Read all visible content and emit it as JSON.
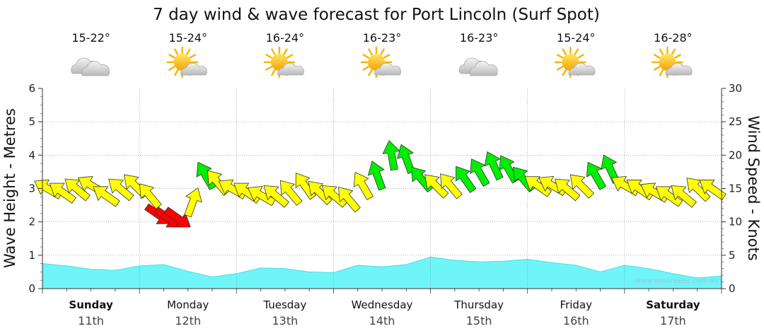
{
  "chart_data": {
    "type": "line",
    "title": "7 day wind & wave forecast for Port Lincoln (Surf Spot)",
    "ylabel": "Wave Height - Metres",
    "y2label": "Wind Speed - Knots",
    "ylim": [
      0,
      6
    ],
    "y2lim": [
      0,
      30
    ],
    "yticks": [
      "0",
      "1",
      "2",
      "3",
      "4",
      "5",
      "6"
    ],
    "y2ticks": [
      "0",
      "5",
      "10",
      "15",
      "20",
      "25",
      "30"
    ],
    "grid": true,
    "watermark": "www.seabreeze.com.au",
    "days": [
      {
        "name": "Sunday",
        "date": "11th",
        "temp": "15-22°",
        "icon": "cloud-icon",
        "bold": true
      },
      {
        "name": "Monday",
        "date": "12th",
        "temp": "15-24°",
        "icon": "sun-cloud-icon",
        "bold": false
      },
      {
        "name": "Tuesday",
        "date": "13th",
        "temp": "16-24°",
        "icon": "sun-cloud-icon",
        "bold": false
      },
      {
        "name": "Wednesday",
        "date": "14th",
        "temp": "16-23°",
        "icon": "sun-cloud-icon",
        "bold": false
      },
      {
        "name": "Thursday",
        "date": "15th",
        "temp": "16-23°",
        "icon": "cloud-icon",
        "bold": false
      },
      {
        "name": "Friday",
        "date": "16th",
        "temp": "15-24°",
        "icon": "sun-cloud-icon",
        "bold": false
      },
      {
        "name": "Saturday",
        "date": "17th",
        "temp": "16-28°",
        "icon": "sun-cloud-icon",
        "bold": true
      }
    ],
    "wave_series": {
      "name": "Wave Height",
      "x_days": [
        0,
        0.25,
        0.5,
        0.75,
        1,
        1.25,
        1.5,
        1.75,
        2,
        2.25,
        2.5,
        2.75,
        3,
        3.25,
        3.5,
        3.75,
        4,
        4.25,
        4.5,
        4.75,
        5,
        5.25,
        5.5,
        5.75,
        6,
        6.25,
        6.5,
        6.75,
        7
      ],
      "values": [
        0.75,
        0.68,
        0.58,
        0.55,
        0.68,
        0.72,
        0.52,
        0.35,
        0.45,
        0.62,
        0.6,
        0.5,
        0.48,
        0.7,
        0.65,
        0.72,
        0.95,
        0.85,
        0.8,
        0.82,
        0.88,
        0.78,
        0.7,
        0.5,
        0.7,
        0.6,
        0.45,
        0.32,
        0.38
      ]
    },
    "wind_series": {
      "name": "Wind Speed",
      "colors": {
        "light": "#ffff00",
        "moderate": "#00ee00",
        "strong": "#ff0000"
      },
      "points": [
        {
          "x": 0.05,
          "y": 15.0,
          "dir": 300,
          "level": "light"
        },
        {
          "x": 0.2,
          "y": 14.5,
          "dir": 305,
          "level": "light"
        },
        {
          "x": 0.35,
          "y": 15.0,
          "dir": 310,
          "level": "light"
        },
        {
          "x": 0.5,
          "y": 15.5,
          "dir": 300,
          "level": "light"
        },
        {
          "x": 0.65,
          "y": 14.0,
          "dir": 305,
          "level": "light"
        },
        {
          "x": 0.8,
          "y": 15.0,
          "dir": 310,
          "level": "light"
        },
        {
          "x": 0.95,
          "y": 15.5,
          "dir": 315,
          "level": "light"
        },
        {
          "x": 1.1,
          "y": 14.0,
          "dir": 320,
          "level": "light"
        },
        {
          "x": 1.2,
          "y": 11.0,
          "dir": 125,
          "level": "strong"
        },
        {
          "x": 1.3,
          "y": 10.5,
          "dir": 125,
          "level": "strong"
        },
        {
          "x": 1.4,
          "y": 10.5,
          "dir": 125,
          "level": "strong"
        },
        {
          "x": 1.55,
          "y": 13.0,
          "dir": 20,
          "level": "light"
        },
        {
          "x": 1.68,
          "y": 17.0,
          "dir": 330,
          "level": "moderate"
        },
        {
          "x": 1.8,
          "y": 16.0,
          "dir": 320,
          "level": "light"
        },
        {
          "x": 1.95,
          "y": 15.0,
          "dir": 300,
          "level": "light"
        },
        {
          "x": 2.1,
          "y": 14.5,
          "dir": 305,
          "level": "light"
        },
        {
          "x": 2.25,
          "y": 14.0,
          "dir": 300,
          "level": "light"
        },
        {
          "x": 2.4,
          "y": 14.0,
          "dir": 310,
          "level": "light"
        },
        {
          "x": 2.55,
          "y": 14.5,
          "dir": 320,
          "level": "light"
        },
        {
          "x": 2.7,
          "y": 15.5,
          "dir": 325,
          "level": "light"
        },
        {
          "x": 2.85,
          "y": 14.5,
          "dir": 315,
          "level": "light"
        },
        {
          "x": 3.0,
          "y": 14.0,
          "dir": 310,
          "level": "light"
        },
        {
          "x": 3.15,
          "y": 13.5,
          "dir": 320,
          "level": "light"
        },
        {
          "x": 3.3,
          "y": 15.5,
          "dir": 330,
          "level": "light"
        },
        {
          "x": 3.45,
          "y": 17.0,
          "dir": 340,
          "level": "moderate"
        },
        {
          "x": 3.6,
          "y": 20.0,
          "dir": 350,
          "level": "moderate"
        },
        {
          "x": 3.75,
          "y": 19.5,
          "dir": 340,
          "level": "moderate"
        },
        {
          "x": 3.9,
          "y": 16.5,
          "dir": 320,
          "level": "moderate"
        },
        {
          "x": 4.05,
          "y": 15.5,
          "dir": 315,
          "level": "light"
        },
        {
          "x": 4.2,
          "y": 15.5,
          "dir": 320,
          "level": "light"
        },
        {
          "x": 4.35,
          "y": 16.5,
          "dir": 325,
          "level": "moderate"
        },
        {
          "x": 4.5,
          "y": 17.5,
          "dir": 330,
          "level": "moderate"
        },
        {
          "x": 4.65,
          "y": 18.5,
          "dir": 335,
          "level": "moderate"
        },
        {
          "x": 4.8,
          "y": 18.0,
          "dir": 330,
          "level": "moderate"
        },
        {
          "x": 4.95,
          "y": 16.5,
          "dir": 320,
          "level": "moderate"
        },
        {
          "x": 5.1,
          "y": 15.5,
          "dir": 305,
          "level": "light"
        },
        {
          "x": 5.25,
          "y": 15.5,
          "dir": 300,
          "level": "light"
        },
        {
          "x": 5.4,
          "y": 15.0,
          "dir": 310,
          "level": "light"
        },
        {
          "x": 5.55,
          "y": 15.5,
          "dir": 315,
          "level": "light"
        },
        {
          "x": 5.7,
          "y": 17.0,
          "dir": 330,
          "level": "moderate"
        },
        {
          "x": 5.85,
          "y": 18.0,
          "dir": 335,
          "level": "moderate"
        },
        {
          "x": 6.0,
          "y": 15.5,
          "dir": 300,
          "level": "light"
        },
        {
          "x": 6.15,
          "y": 15.0,
          "dir": 305,
          "level": "light"
        },
        {
          "x": 6.3,
          "y": 14.5,
          "dir": 300,
          "level": "light"
        },
        {
          "x": 6.45,
          "y": 14.0,
          "dir": 305,
          "level": "light"
        },
        {
          "x": 6.6,
          "y": 14.0,
          "dir": 310,
          "level": "light"
        },
        {
          "x": 6.75,
          "y": 15.0,
          "dir": 315,
          "level": "light"
        },
        {
          "x": 6.9,
          "y": 15.0,
          "dir": 305,
          "level": "light"
        }
      ]
    }
  }
}
